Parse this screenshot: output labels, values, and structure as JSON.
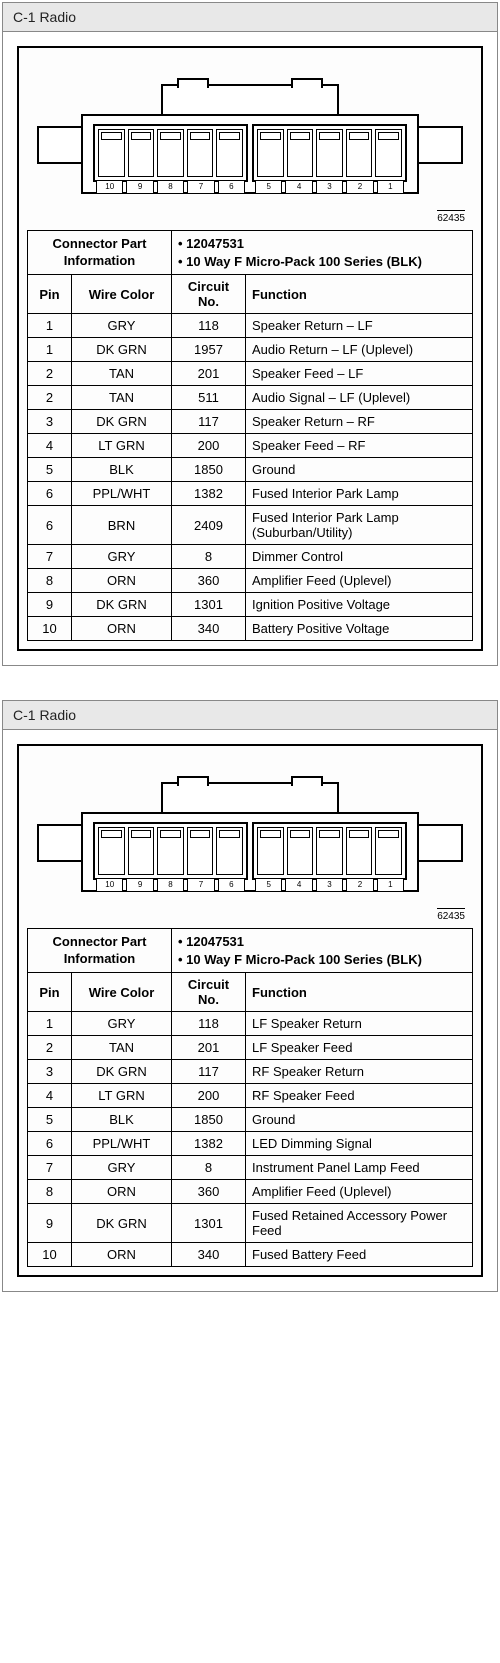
{
  "panels": [
    {
      "title": "C-1 Radio",
      "fig_number": "62435",
      "info_label": "Connector Part Information",
      "part_number": "12047531",
      "series": "10 Way F Micro-Pack 100 Series (BLK)",
      "headers": {
        "pin": "Pin",
        "wire": "Wire Color",
        "circuit": "Circuit No.",
        "func": "Function"
      },
      "rows": [
        {
          "pin": "1",
          "wire": "GRY",
          "circ": "118",
          "func": "Speaker Return – LF"
        },
        {
          "pin": "1",
          "wire": "DK GRN",
          "circ": "1957",
          "func": "Audio Return – LF (Uplevel)"
        },
        {
          "pin": "2",
          "wire": "TAN",
          "circ": "201",
          "func": "Speaker Feed – LF"
        },
        {
          "pin": "2",
          "wire": "TAN",
          "circ": "511",
          "func": "Audio Signal – LF (Uplevel)"
        },
        {
          "pin": "3",
          "wire": "DK GRN",
          "circ": "117",
          "func": "Speaker Return – RF"
        },
        {
          "pin": "4",
          "wire": "LT GRN",
          "circ": "200",
          "func": "Speaker Feed – RF"
        },
        {
          "pin": "5",
          "wire": "BLK",
          "circ": "1850",
          "func": "Ground"
        },
        {
          "pin": "6",
          "wire": "PPL/WHT",
          "circ": "1382",
          "func": "Fused Interior Park Lamp"
        },
        {
          "pin": "6",
          "wire": "BRN",
          "circ": "2409",
          "func": "Fused Interior Park Lamp (Suburban/Utility)"
        },
        {
          "pin": "7",
          "wire": "GRY",
          "circ": "8",
          "func": "Dimmer Control"
        },
        {
          "pin": "8",
          "wire": "ORN",
          "circ": "360",
          "func": "Amplifier Feed (Uplevel)"
        },
        {
          "pin": "9",
          "wire": "DK GRN",
          "circ": "1301",
          "func": "Ignition Positive Voltage"
        },
        {
          "pin": "10",
          "wire": "ORN",
          "circ": "340",
          "func": "Battery Positive Voltage"
        }
      ]
    },
    {
      "title": "C-1 Radio",
      "fig_number": "62435",
      "info_label": "Connector Part Information",
      "part_number": "12047531",
      "series": "10 Way F Micro-Pack 100 Series (BLK)",
      "headers": {
        "pin": "Pin",
        "wire": "Wire Color",
        "circuit": "Circuit No.",
        "func": "Function"
      },
      "rows": [
        {
          "pin": "1",
          "wire": "GRY",
          "circ": "118",
          "func": "LF Speaker Return"
        },
        {
          "pin": "2",
          "wire": "TAN",
          "circ": "201",
          "func": "LF Speaker Feed"
        },
        {
          "pin": "3",
          "wire": "DK GRN",
          "circ": "117",
          "func": "RF Speaker Return"
        },
        {
          "pin": "4",
          "wire": "LT GRN",
          "circ": "200",
          "func": "RF Speaker Feed"
        },
        {
          "pin": "5",
          "wire": "BLK",
          "circ": "1850",
          "func": "Ground"
        },
        {
          "pin": "6",
          "wire": "PPL/WHT",
          "circ": "1382",
          "func": "LED Dimming Signal"
        },
        {
          "pin": "7",
          "wire": "GRY",
          "circ": "8",
          "func": "Instrument Panel Lamp Feed"
        },
        {
          "pin": "8",
          "wire": "ORN",
          "circ": "360",
          "func": "Amplifier Feed (Uplevel)"
        },
        {
          "pin": "9",
          "wire": "DK GRN",
          "circ": "1301",
          "func": "Fused Retained Accessory Power Feed"
        },
        {
          "pin": "10",
          "wire": "ORN",
          "circ": "340",
          "func": "Fused Battery Feed"
        }
      ]
    }
  ],
  "pin_labels_left": [
    "10",
    "9",
    "8",
    "7",
    "6"
  ],
  "pin_labels_right": [
    "5",
    "4",
    "3",
    "2",
    "1"
  ],
  "style": {
    "header_bg": "#e8e8e8",
    "border_color": "#000000",
    "font_size_body": 13,
    "font_size_small": 10
  }
}
